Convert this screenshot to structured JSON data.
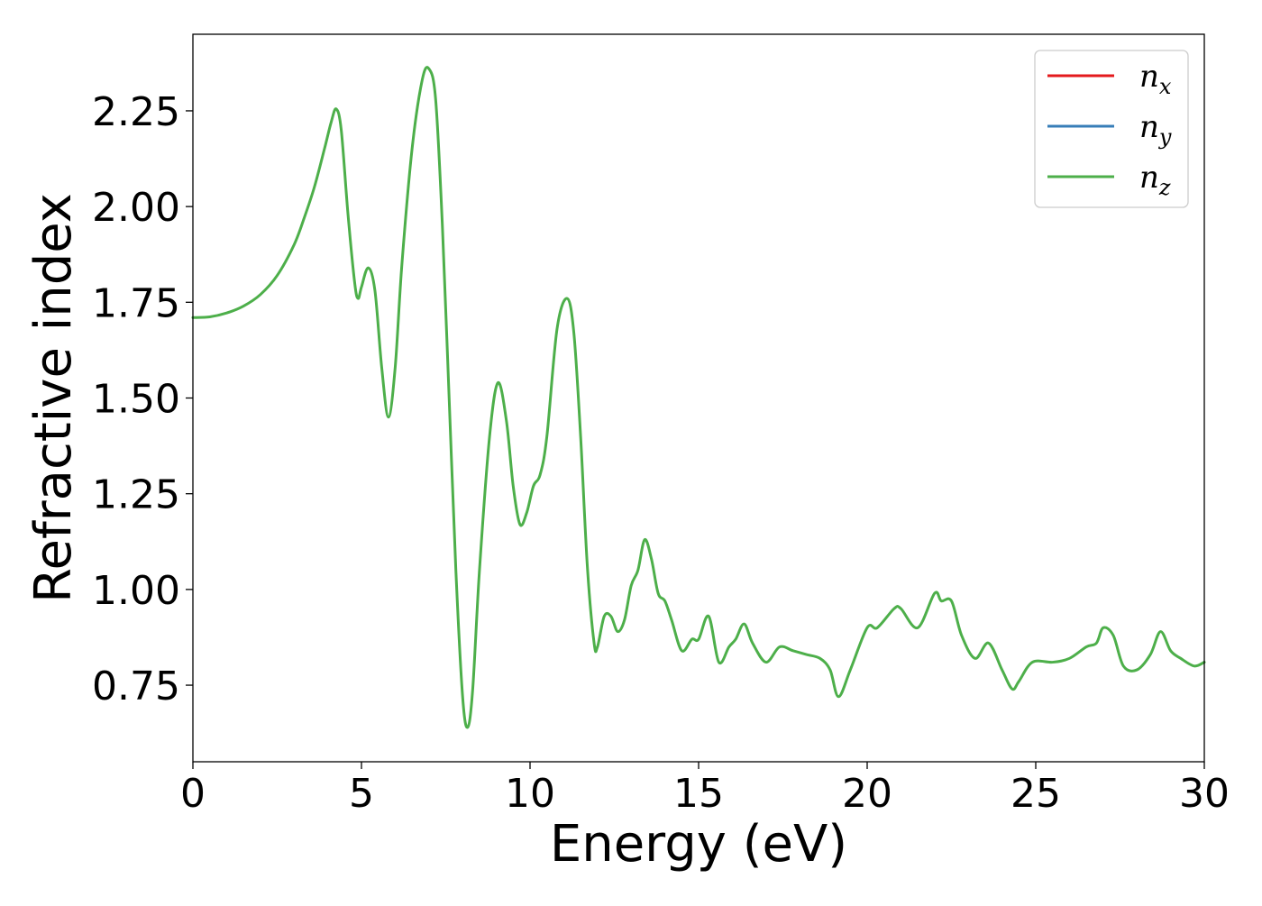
{
  "chart_data": {
    "type": "line",
    "title": "",
    "xlabel": "Energy (eV)",
    "ylabel": "Refractive index",
    "xlim": [
      0,
      30
    ],
    "ylim": [
      0.55,
      2.45
    ],
    "xticks": [
      0,
      5,
      10,
      15,
      20,
      25,
      30
    ],
    "xtick_labels": [
      "0",
      "5",
      "10",
      "15",
      "20",
      "25",
      "30"
    ],
    "yticks": [
      0.75,
      1.0,
      1.25,
      1.5,
      1.75,
      2.0,
      2.25
    ],
    "ytick_labels": [
      "0.75",
      "1.00",
      "1.25",
      "1.50",
      "1.75",
      "2.00",
      "2.25"
    ],
    "grid": false,
    "legend_position": "top-right",
    "series": [
      {
        "name": "n_x",
        "legend_base": "n",
        "legend_sub": "x",
        "color": "#e41a1c",
        "linewidth": 2
      },
      {
        "name": "n_y",
        "legend_base": "n",
        "legend_sub": "y",
        "color": "#377eb8",
        "linewidth": 2
      },
      {
        "name": "n_z",
        "legend_base": "n",
        "legend_sub": "z",
        "color": "#4daf4a",
        "linewidth": 3
      }
    ],
    "x": [
      0.0,
      0.5,
      1.0,
      1.5,
      2.0,
      2.5,
      3.0,
      3.3,
      3.6,
      3.9,
      4.1,
      4.25,
      4.4,
      4.6,
      4.8,
      4.9,
      5.0,
      5.2,
      5.4,
      5.6,
      5.8,
      6.0,
      6.2,
      6.5,
      6.8,
      7.0,
      7.2,
      7.4,
      7.6,
      7.8,
      8.0,
      8.15,
      8.3,
      8.5,
      8.8,
      9.05,
      9.3,
      9.5,
      9.7,
      9.9,
      10.1,
      10.3,
      10.5,
      10.8,
      11.1,
      11.3,
      11.5,
      11.7,
      11.9,
      12.0,
      12.2,
      12.4,
      12.6,
      12.8,
      13.0,
      13.2,
      13.4,
      13.6,
      13.8,
      14.0,
      14.2,
      14.5,
      14.8,
      15.0,
      15.3,
      15.6,
      15.9,
      16.1,
      16.35,
      16.6,
      17.0,
      17.4,
      17.8,
      18.2,
      18.6,
      18.9,
      19.15,
      19.5,
      20.0,
      20.3,
      20.8,
      21.0,
      21.5,
      22.0,
      22.2,
      22.5,
      22.8,
      23.2,
      23.6,
      24.0,
      24.3,
      24.5,
      24.9,
      25.5,
      26.0,
      26.5,
      26.8,
      27.0,
      27.3,
      27.6,
      28.0,
      28.4,
      28.7,
      29.0,
      29.3,
      29.7,
      30.0
    ],
    "values": [
      1.71,
      1.712,
      1.722,
      1.74,
      1.77,
      1.82,
      1.9,
      1.97,
      2.05,
      2.15,
      2.22,
      2.255,
      2.2,
      1.98,
      1.8,
      1.76,
      1.79,
      1.84,
      1.78,
      1.58,
      1.45,
      1.58,
      1.85,
      2.15,
      2.33,
      2.36,
      2.28,
      1.95,
      1.5,
      1.05,
      0.72,
      0.64,
      0.74,
      1.05,
      1.4,
      1.54,
      1.44,
      1.27,
      1.17,
      1.2,
      1.27,
      1.3,
      1.4,
      1.68,
      1.76,
      1.67,
      1.4,
      1.06,
      0.86,
      0.85,
      0.93,
      0.93,
      0.89,
      0.92,
      1.01,
      1.05,
      1.13,
      1.08,
      0.99,
      0.97,
      0.92,
      0.84,
      0.87,
      0.87,
      0.93,
      0.81,
      0.85,
      0.87,
      0.91,
      0.86,
      0.81,
      0.85,
      0.84,
      0.83,
      0.82,
      0.79,
      0.72,
      0.79,
      0.9,
      0.9,
      0.95,
      0.95,
      0.9,
      0.99,
      0.97,
      0.97,
      0.88,
      0.82,
      0.86,
      0.79,
      0.74,
      0.76,
      0.81,
      0.81,
      0.82,
      0.85,
      0.86,
      0.9,
      0.88,
      0.8,
      0.79,
      0.83,
      0.89,
      0.84,
      0.82,
      0.8,
      0.81
    ]
  }
}
